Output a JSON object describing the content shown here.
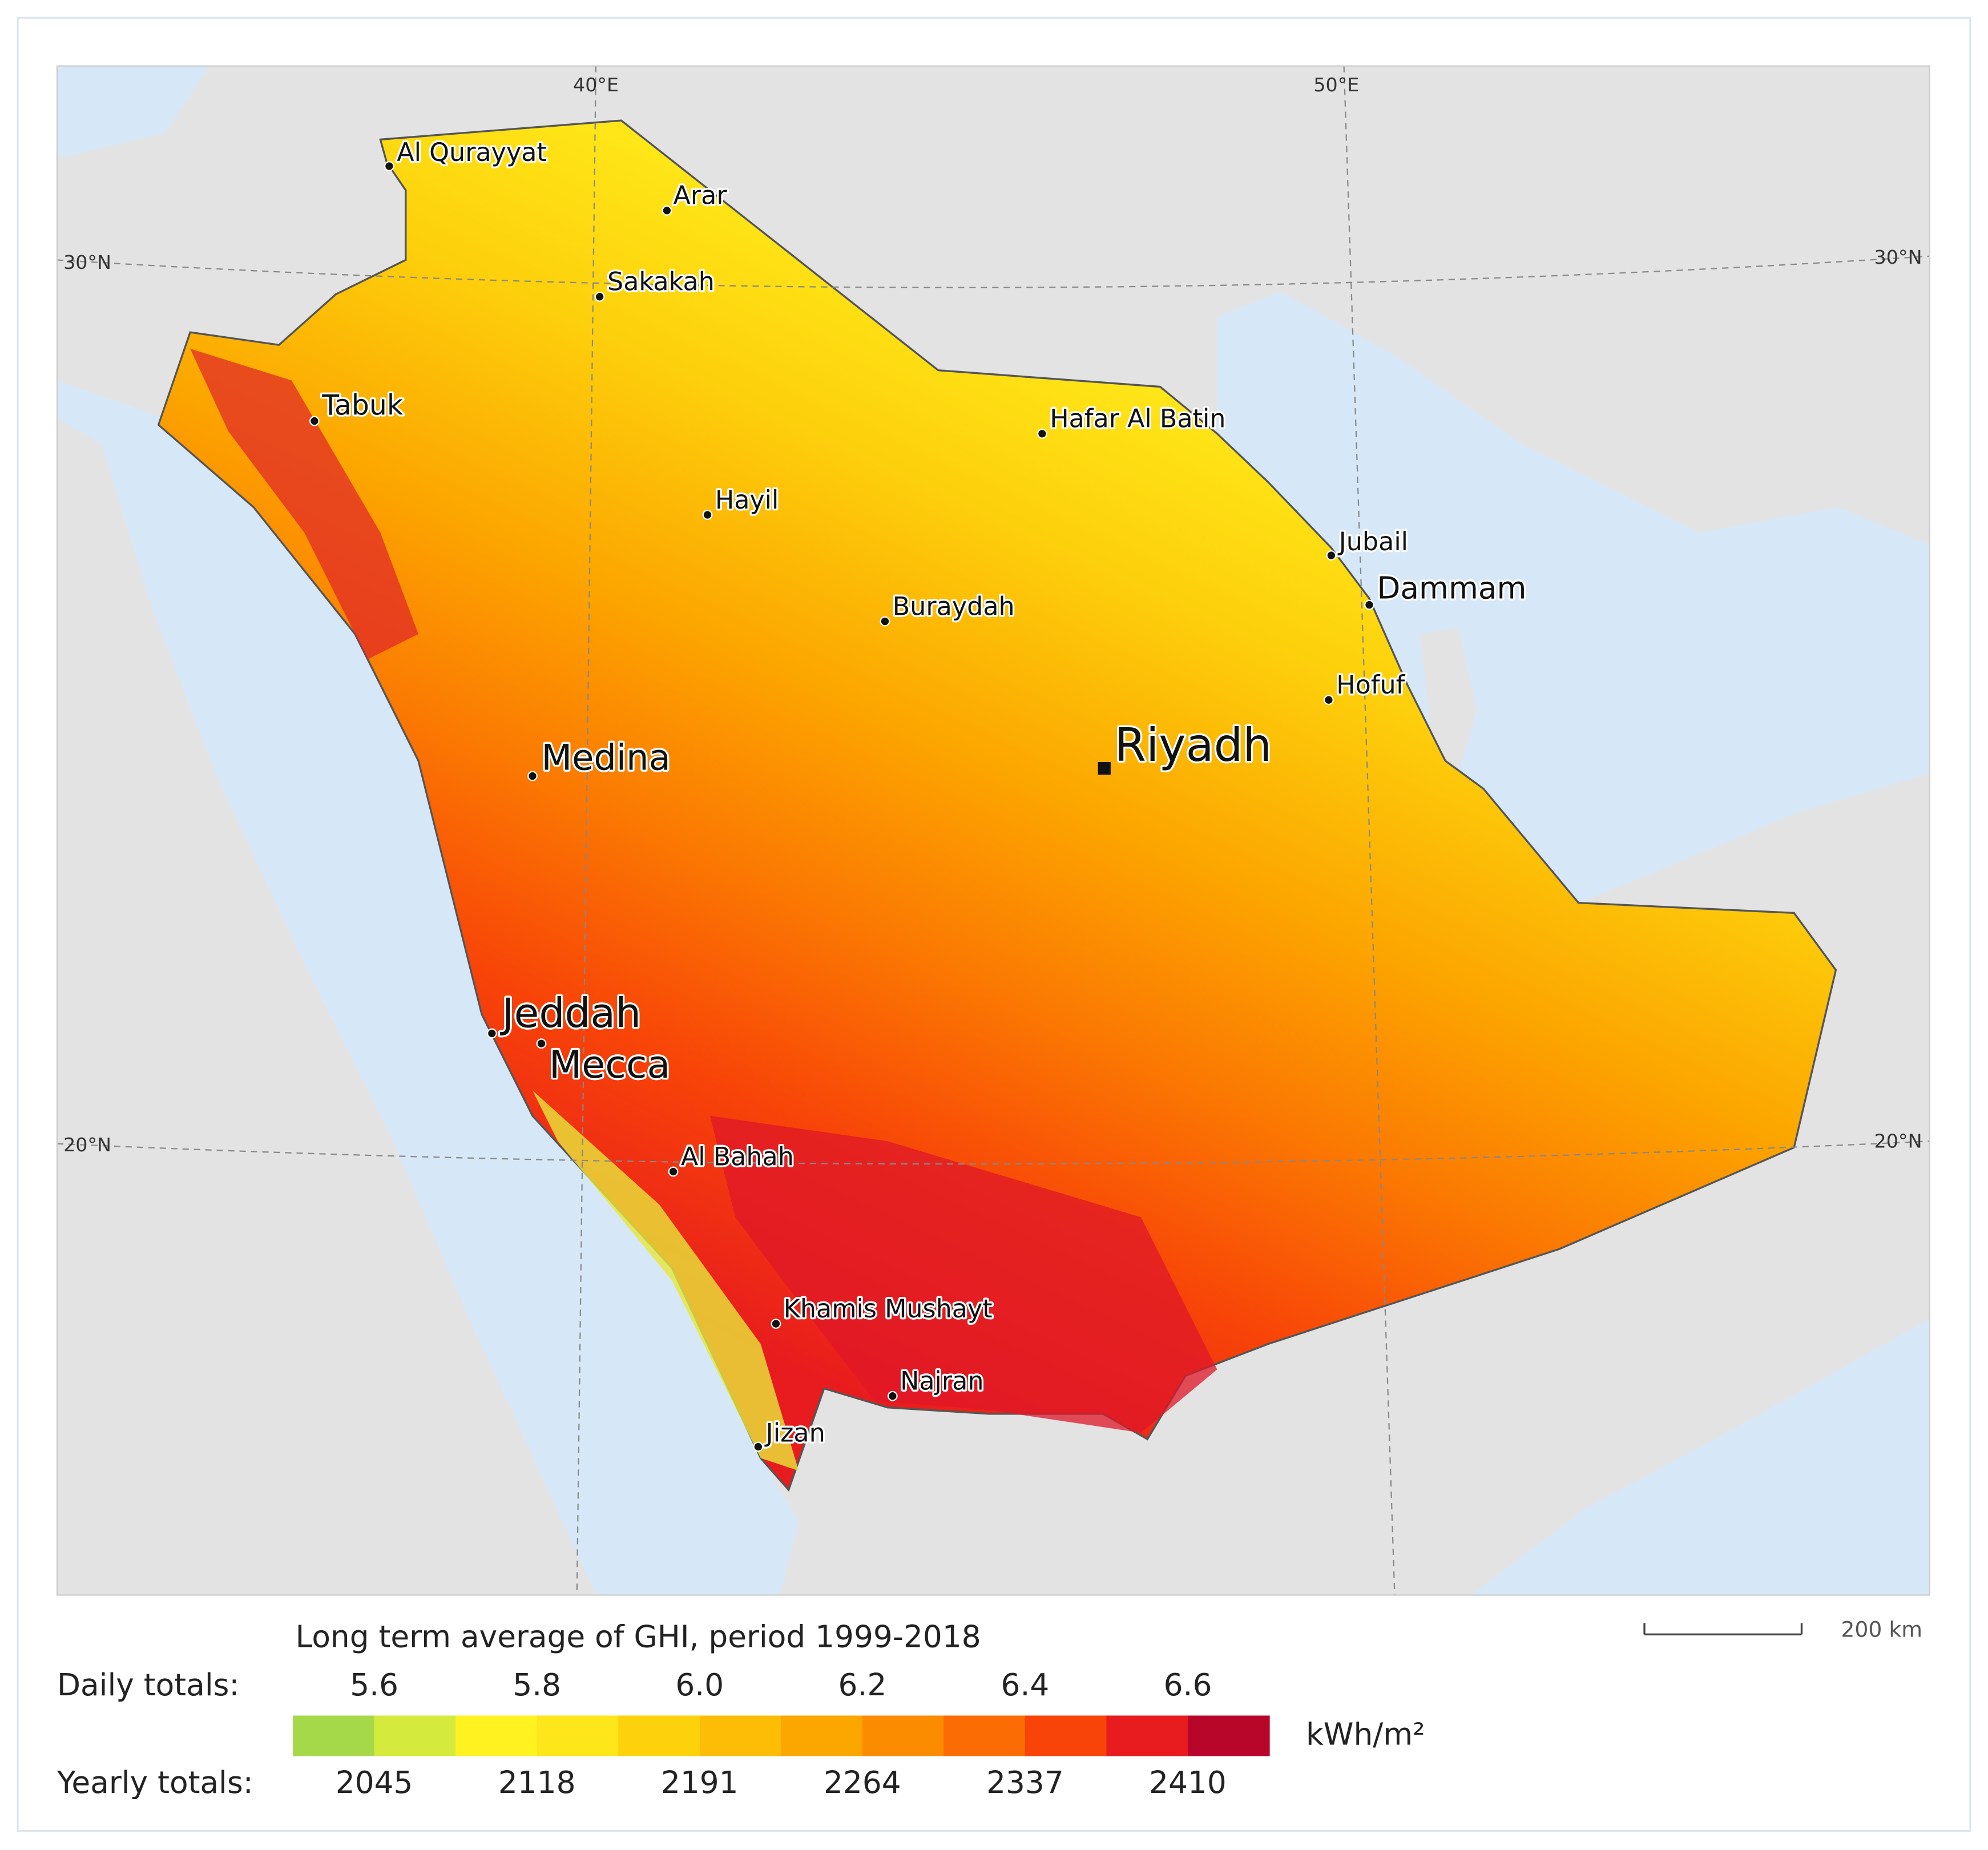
{
  "map": {
    "grid_labels": [
      "40°E",
      "50°E",
      "30°N",
      "30°N",
      "20°N",
      "20°N"
    ],
    "cities": [
      "Al Qurayyat",
      "Arar",
      "Sakakah",
      "Tabuk",
      "Hafar Al Batin",
      "Hayil",
      "Jubail",
      "Dammam",
      "Buraydah",
      "Hofuf",
      "Riyadh",
      "Medina",
      "Jeddah",
      "Mecca",
      "Al Bahah",
      "Khamis Mushayt",
      "Najran",
      "Jizan"
    ],
    "legend": {
      "title": "Long term average of GHI, period 1999-2018",
      "daily_label": "Daily totals:",
      "daily_values": [
        "5.6",
        "5.8",
        "6.0",
        "6.2",
        "6.4",
        "6.6"
      ],
      "colors": [
        "#a6d94a",
        "#d4ea3c",
        "#fff220",
        "#fde61a",
        "#fdd20c",
        "#fdbd06",
        "#fca600",
        "#fb8c00",
        "#fb6d04",
        "#f84408",
        "#e81b1e",
        "#b8062b"
      ],
      "unit": "kWh/m²",
      "yearly_label": "Yearly totals:",
      "yearly_values": [
        2045,
        2118,
        2191,
        2264,
        2337,
        2410
      ]
    },
    "scale_bar": "200 km"
  }
}
